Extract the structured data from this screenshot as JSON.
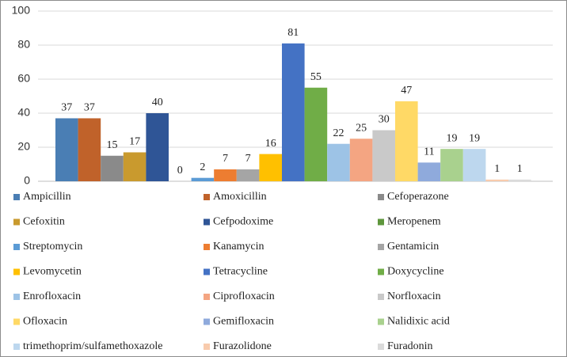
{
  "chart_data": {
    "type": "bar",
    "series": [
      {
        "name": "Ampicillin",
        "color": "#4a7eb4",
        "values": [
          37
        ]
      },
      {
        "name": "Amoxicillin",
        "color": "#c0622a",
        "values": [
          37
        ]
      },
      {
        "name": "Cefoperazone",
        "color": "#8a8a8a",
        "values": [
          15
        ]
      },
      {
        "name": "Cefoxitin",
        "color": "#c99a2e",
        "values": [
          17
        ]
      },
      {
        "name": "Cefpodoxime",
        "color": "#2f5596",
        "values": [
          40
        ]
      },
      {
        "name": "Meropenem",
        "color": "#5e963c",
        "values": [
          0
        ]
      },
      {
        "name": "Streptomycin",
        "color": "#5b9bd5",
        "values": [
          2
        ]
      },
      {
        "name": "Kanamycin",
        "color": "#ed7d31",
        "values": [
          7
        ]
      },
      {
        "name": "Gentamicin",
        "color": "#a5a5a5",
        "values": [
          7
        ]
      },
      {
        "name": "Levomycetin",
        "color": "#ffc000",
        "values": [
          16
        ]
      },
      {
        "name": "Tetracycline",
        "color": "#4472c4",
        "values": [
          81
        ]
      },
      {
        "name": "Doxycycline",
        "color": "#70ad47",
        "values": [
          55
        ]
      },
      {
        "name": "Enrofloxacin",
        "color": "#9dc3e6",
        "values": [
          22
        ]
      },
      {
        "name": "Ciprofloxacin",
        "color": "#f4a582",
        "values": [
          25
        ]
      },
      {
        "name": "Norfloxacin",
        "color": "#c9c9c9",
        "values": [
          30
        ]
      },
      {
        "name": "Ofloxacin",
        "color": "#ffd966",
        "values": [
          47
        ]
      },
      {
        "name": "Gemifloxacin",
        "color": "#8faadc",
        "values": [
          11
        ]
      },
      {
        "name": "Nalidixic acid",
        "color": "#a9d18e",
        "values": [
          19
        ]
      },
      {
        "name": "trimethoprim/sulfamethoxazole",
        "color": "#bdd7ee",
        "values": [
          19
        ]
      },
      {
        "name": "Furazolidone",
        "color": "#f8cbad",
        "values": [
          1
        ]
      },
      {
        "name": "Furadonin",
        "color": "#dbdbdb",
        "values": [
          1
        ]
      }
    ],
    "ylim": [
      0,
      100
    ],
    "yticks": [
      0,
      20,
      40,
      60,
      80,
      100
    ],
    "grid": true
  }
}
